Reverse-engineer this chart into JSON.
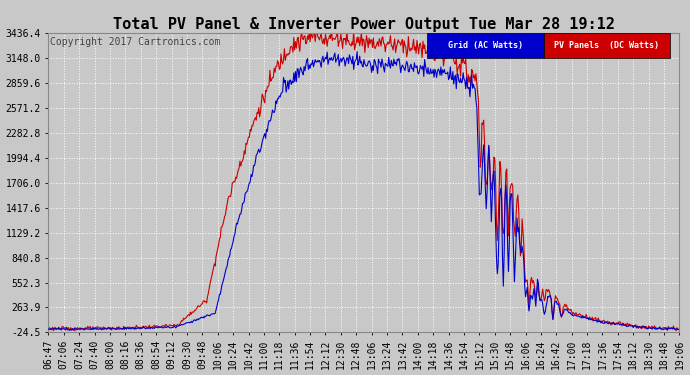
{
  "title": "Total PV Panel & Inverter Power Output Tue Mar 28 19:12",
  "copyright": "Copyright 2017 Cartronics.com",
  "legend_grid": "Grid (AC Watts)",
  "legend_pv": "PV Panels  (DC Watts)",
  "grid_line_color_hex": "#0000cc",
  "pv_line_color_hex": "#cc0000",
  "legend_grid_bg": "#0000cc",
  "legend_pv_bg": "#cc0000",
  "ylim": [
    -24.5,
    3436.4
  ],
  "yticks": [
    -24.5,
    263.9,
    552.3,
    840.8,
    1129.2,
    1417.6,
    1706.0,
    1994.4,
    2282.8,
    2571.2,
    2859.6,
    3148.0,
    3436.4
  ],
  "ytick_labels": [
    "-24.5",
    "263.9",
    "552.3",
    "840.8",
    "1129.2",
    "1417.6",
    "1706.0",
    "1994.4",
    "2282.8",
    "2571.2",
    "2859.6",
    "3148.0",
    "3436.4"
  ],
  "background_color": "#c8c8c8",
  "grid_line_color": "#ffffff",
  "title_fontsize": 11,
  "copyright_fontsize": 7,
  "tick_fontsize": 7,
  "xtick_labels": [
    "06:47",
    "07:06",
    "07:24",
    "07:40",
    "08:00",
    "08:16",
    "08:36",
    "08:54",
    "09:12",
    "09:30",
    "09:48",
    "10:06",
    "10:24",
    "10:42",
    "11:00",
    "11:18",
    "11:36",
    "11:54",
    "12:12",
    "12:30",
    "12:48",
    "13:06",
    "13:24",
    "13:42",
    "14:00",
    "14:18",
    "14:36",
    "14:54",
    "15:12",
    "15:30",
    "15:48",
    "16:06",
    "16:24",
    "16:42",
    "17:00",
    "17:18",
    "17:36",
    "17:54",
    "18:12",
    "18:30",
    "18:48",
    "19:06"
  ]
}
